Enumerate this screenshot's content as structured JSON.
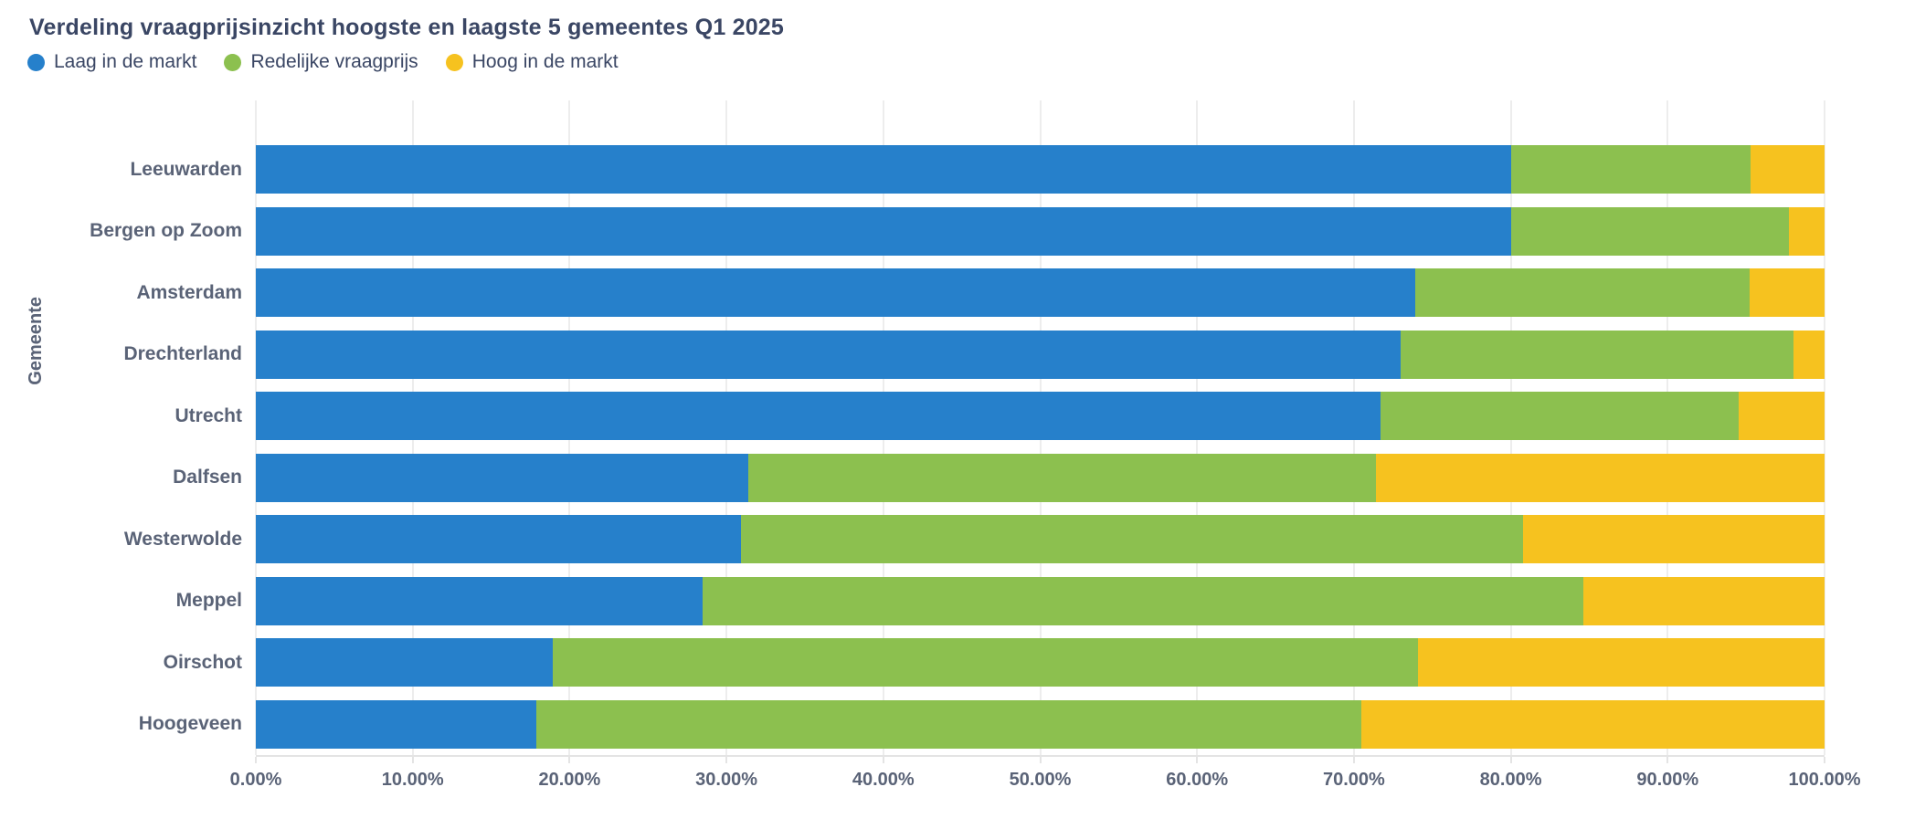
{
  "title": "Verdeling vraagprijsinzicht hoogste en laagste 5 gemeentes Q1 2025",
  "legend": {
    "items": [
      {
        "label": "Laag in de markt",
        "color": "#2680CB"
      },
      {
        "label": "Redelijke vraagprijs",
        "color": "#8CC04F"
      },
      {
        "label": "Hoog in de markt",
        "color": "#F6C21F"
      }
    ]
  },
  "y_axis": {
    "title": "Gemeente"
  },
  "x_axis": {
    "ticks": [
      "0.00%",
      "10.00%",
      "20.00%",
      "30.00%",
      "40.00%",
      "50.00%",
      "60.00%",
      "70.00%",
      "80.00%",
      "90.00%",
      "100.00%"
    ]
  },
  "chart_data": {
    "type": "bar",
    "orientation": "horizontal",
    "stacked": true,
    "title": "Verdeling vraagprijsinzicht hoogste en laagste 5 gemeentes Q1 2025",
    "xlabel": "",
    "ylabel": "Gemeente",
    "xlim": [
      0,
      100
    ],
    "x_tick_step": 10,
    "x_tick_format": "0.00%",
    "grid": true,
    "legend_position": "top-left",
    "categories": [
      "Leeuwarden",
      "Bergen op Zoom",
      "Amsterdam",
      "Drechterland",
      "Utrecht",
      "Dalfsen",
      "Westerwolde",
      "Meppel",
      "Oirschot",
      "Hoogeveen"
    ],
    "series": [
      {
        "name": "Laag in de markt",
        "color": "#2680CB",
        "values": [
          80.0,
          80.0,
          73.9,
          73.0,
          71.7,
          31.4,
          30.9,
          28.5,
          18.9,
          17.9
        ]
      },
      {
        "name": "Redelijke vraagprijs",
        "color": "#8CC04F",
        "values": [
          15.3,
          17.7,
          21.3,
          25.0,
          22.8,
          40.0,
          49.9,
          56.1,
          55.2,
          52.6
        ]
      },
      {
        "name": "Hoog in de markt",
        "color": "#F6C21F",
        "values": [
          4.7,
          2.3,
          4.8,
          2.0,
          5.5,
          28.6,
          19.2,
          15.4,
          25.9,
          29.5
        ]
      }
    ]
  },
  "colors": {
    "title_text": "#3A4664",
    "axis_text": "#5A6377",
    "gridline": "#EDEDED",
    "axis_line": "#E4E4E4",
    "background": "#FFFFFF"
  }
}
